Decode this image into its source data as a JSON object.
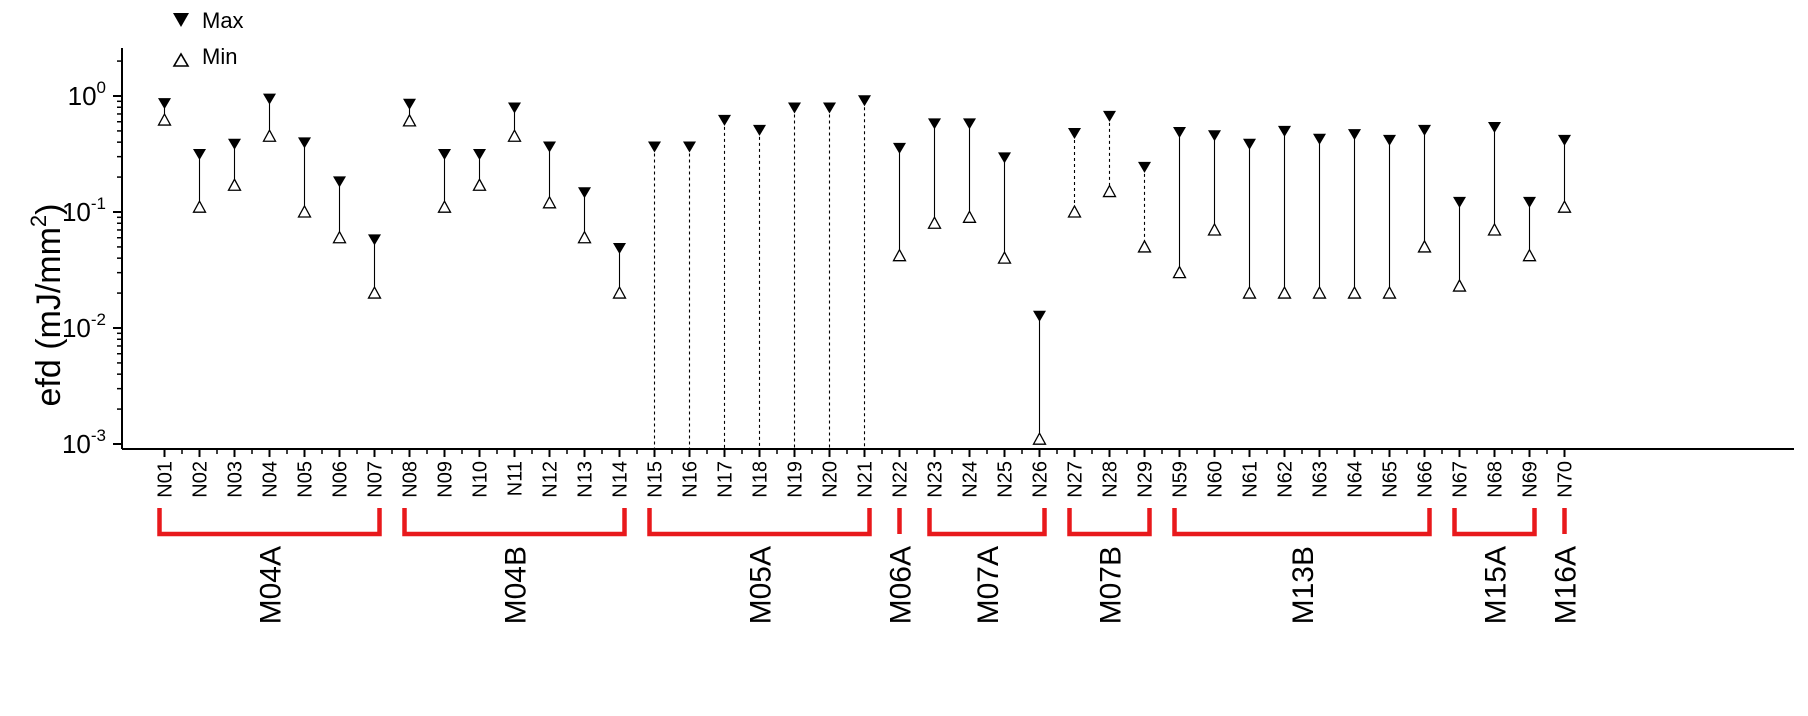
{
  "chart_data": {
    "type": "scatter",
    "title": "",
    "xlabel": "",
    "ylabel": "efd (mJ/mm",
    "ylabel_superscript": "2",
    "ylabel_close": ")",
    "yscale": "log",
    "ylim": [
      0.001,
      2
    ],
    "ytick_labels": [
      {
        "value": 0.001,
        "base": "10",
        "exp": "-3"
      },
      {
        "value": 0.01,
        "base": "10",
        "exp": "-2"
      },
      {
        "value": 0.1,
        "base": "10",
        "exp": "-1"
      },
      {
        "value": 1,
        "base": "10",
        "exp": "0"
      }
    ],
    "legend": {
      "position": "top-left",
      "entries": [
        {
          "label": "Max",
          "marker": "filled-down-triangle"
        },
        {
          "label": "Min",
          "marker": "open-up-triangle"
        }
      ]
    },
    "categories": [
      "N01",
      "N02",
      "N03",
      "N04",
      "N05",
      "N06",
      "N07",
      "N08",
      "N09",
      "N10",
      "N11",
      "N12",
      "N13",
      "N14",
      "N15",
      "N16",
      "N17",
      "N18",
      "N19",
      "N20",
      "N21",
      "N22",
      "N23",
      "N24",
      "N25",
      "N26",
      "N27",
      "N28",
      "N29",
      "N59",
      "N60",
      "N61",
      "N62",
      "N63",
      "N64",
      "N65",
      "N66",
      "N67",
      "N68",
      "N69",
      "N70"
    ],
    "series": [
      {
        "name": "Max",
        "values": [
          0.85,
          0.31,
          0.38,
          0.93,
          0.39,
          0.18,
          0.057,
          0.84,
          0.31,
          0.31,
          0.78,
          0.36,
          0.145,
          0.048,
          0.36,
          0.36,
          0.61,
          0.5,
          0.78,
          0.78,
          0.9,
          0.35,
          0.57,
          0.57,
          0.29,
          0.0125,
          0.47,
          0.66,
          0.24,
          0.48,
          0.45,
          0.38,
          0.49,
          0.42,
          0.46,
          0.41,
          0.5,
          0.12,
          0.53,
          0.12,
          0.41
        ]
      },
      {
        "name": "Min",
        "values": [
          0.62,
          0.11,
          0.17,
          0.45,
          0.1,
          0.06,
          0.02,
          0.61,
          0.11,
          0.17,
          0.45,
          0.12,
          0.06,
          0.02,
          null,
          null,
          null,
          null,
          null,
          null,
          null,
          0.042,
          0.08,
          0.09,
          0.04,
          0.0011,
          0.1,
          0.15,
          0.05,
          0.03,
          0.07,
          0.02,
          0.02,
          0.02,
          0.02,
          0.02,
          0.05,
          0.023,
          0.07,
          0.042,
          0.11
        ]
      }
    ],
    "line_style": [
      "solid",
      "solid",
      "solid",
      "solid",
      "solid",
      "solid",
      "solid",
      "solid",
      "solid",
      "solid",
      "solid",
      "solid",
      "solid",
      "solid",
      "dashed",
      "dashed",
      "dashed",
      "dashed",
      "dashed",
      "dashed",
      "dashed",
      "solid",
      "solid",
      "solid",
      "solid",
      "solid",
      "dashed",
      "dashed",
      "dashed",
      "solid",
      "solid",
      "solid",
      "solid",
      "solid",
      "solid",
      "solid",
      "solid",
      "solid",
      "solid",
      "solid",
      "solid"
    ],
    "groups": [
      {
        "label": "M04A",
        "start": "N01",
        "end": "N07"
      },
      {
        "label": "M04B",
        "start": "N08",
        "end": "N14"
      },
      {
        "label": "M05A",
        "start": "N15",
        "end": "N21"
      },
      {
        "label": "M06A",
        "start": "N22",
        "end": "N22"
      },
      {
        "label": "M07A",
        "start": "N23",
        "end": "N26"
      },
      {
        "label": "M07B",
        "start": "N27",
        "end": "N29"
      },
      {
        "label": "M13B",
        "start": "N59",
        "end": "N66"
      },
      {
        "label": "M15A",
        "start": "N67",
        "end": "N69"
      },
      {
        "label": "M16A",
        "start": "N70",
        "end": "N70"
      }
    ],
    "colors": {
      "axis": "#000000",
      "marker": "#000000",
      "group_bracket": "#e8191c"
    }
  }
}
